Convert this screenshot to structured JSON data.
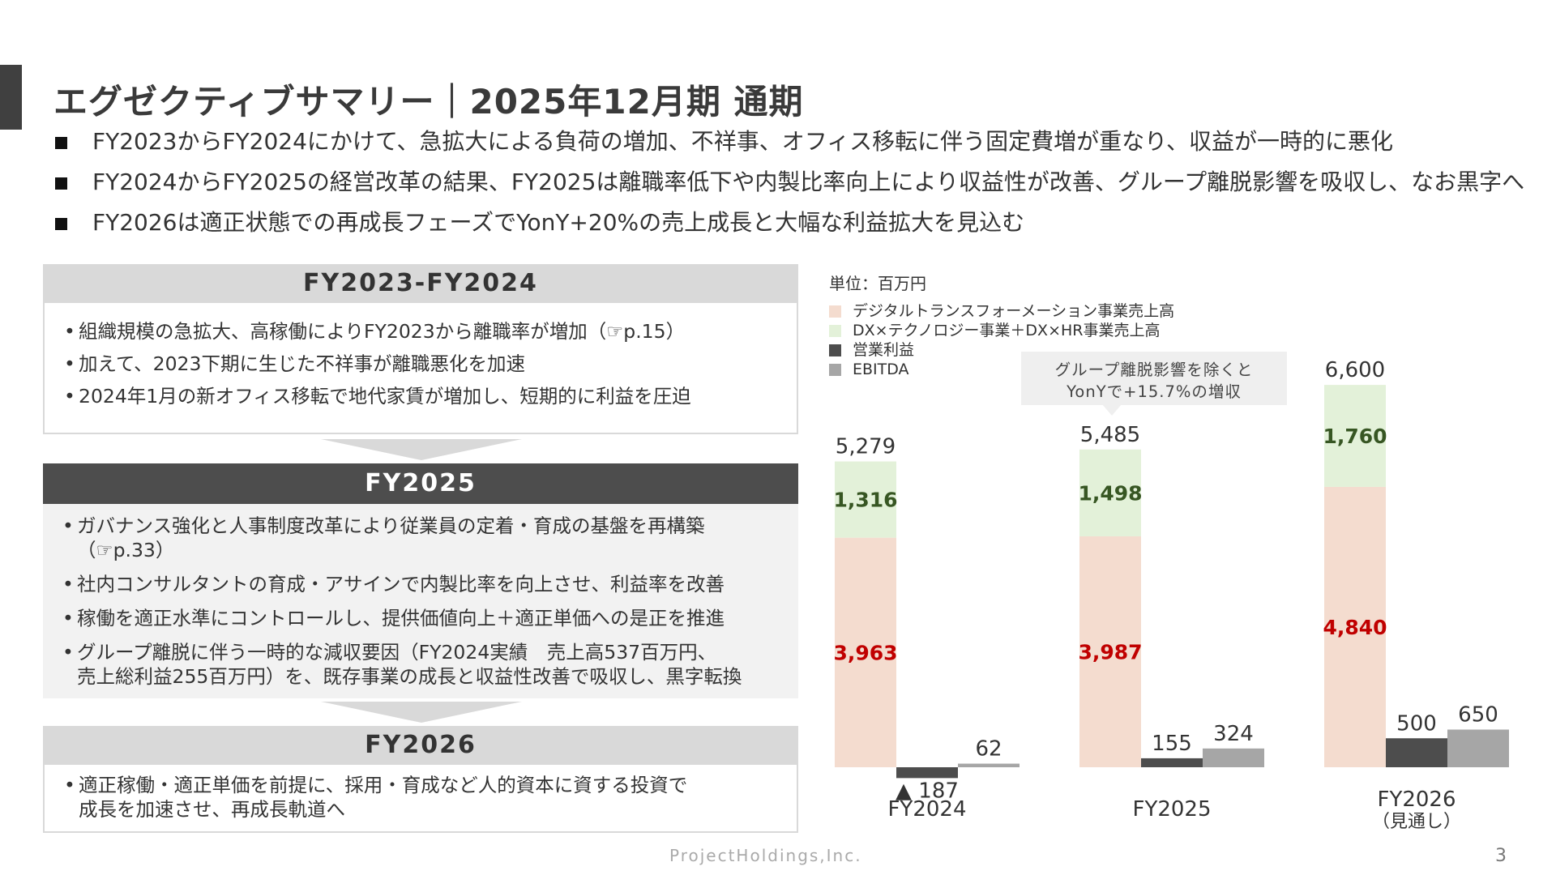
{
  "header": {
    "title": "エグゼクティブサマリー｜2025年12月期 通期",
    "bullets": [
      "FY2023からFY2024にかけて、急拡大による負荷の増加、不祥事、オフィス移転に伴う固定費増が重なり、収益が一時的に悪化",
      "FY2024からFY2025の経営改革の結果、FY2025は離職率低下や内製比率向上により収益性が改善、グループ離脱影響を吸収し、なお黒字へ",
      "FY2026は適正状態での再成長フェーズでYonY+20%の売上成長と大幅な利益拡大を見込む"
    ]
  },
  "panels": {
    "p1": {
      "title": "FY2023-FY2024",
      "items": [
        "組織規模の急拡大、高稼働によりFY2023から離職率が増加（☞p.15）",
        "加えて、2023下期に生じた不祥事が離職悪化を加速",
        "2024年1月の新オフィス移転で地代家賃が増加し、短期的に利益を圧迫"
      ]
    },
    "p2": {
      "title": "FY2025",
      "items": [
        [
          "ガバナンス強化と人事制度改革により従業員の定着・育成の基盤を再構築",
          "（☞p.33）"
        ],
        [
          "社内コンサルタントの育成・アサインで内製比率を向上させ、利益率を改善"
        ],
        [
          "稼働を適正水準にコントロールし、提供価値向上＋適正単価への是正を推進"
        ],
        [
          "グループ離脱に伴う一時的な減収要因（FY2024実績　売上高537百万円、",
          "売上総利益255百万円）を、既存事業の成長と収益性改善で吸収し、黒字転換"
        ]
      ]
    },
    "p3": {
      "title": "FY2026",
      "items": [
        [
          "適正稼働・適正単価を前提に、採用・育成など人的資本に資する投資で",
          "成長を加速させ、再成長軌道へ"
        ]
      ]
    }
  },
  "footer": {
    "company": "ProjectHoldings,Inc.",
    "page": "3"
  },
  "chart_data": {
    "type": "bar",
    "unit_label": "単位：百万円",
    "categories": [
      [
        "FY2024"
      ],
      [
        "FY2025"
      ],
      [
        "FY2026",
        "（見通し）"
      ]
    ],
    "series": [
      {
        "name": "デジタルトランスフォーメーション事業売上高",
        "values": [
          3963,
          3987,
          4840
        ],
        "color": "#f4dccf",
        "label_color": "#c00000"
      },
      {
        "name": "DX×テクノロジー事業＋DX×HR事業売上高",
        "values": [
          1316,
          1498,
          1760
        ],
        "color": "#e3f1d9",
        "label_color": "#375623"
      },
      {
        "name": "営業利益",
        "values": [
          -187,
          155,
          500
        ],
        "color": "#4d4d4d"
      },
      {
        "name": "EBITDA",
        "values": [
          62,
          324,
          650
        ],
        "color": "#a6a6a6"
      }
    ],
    "totals": [
      5279,
      5485,
      6600
    ],
    "value_labels": {
      "revenue_dt": [
        "3,963",
        "3,987",
        "4,840"
      ],
      "revenue_tech_hr": [
        "1,316",
        "1,498",
        "1,760"
      ],
      "totals": [
        "5,279",
        "5,485",
        "6,600"
      ],
      "operating_profit": [
        "▲ 187",
        "155",
        "500"
      ],
      "ebitda": [
        "62",
        "324",
        "650"
      ]
    },
    "annotation": [
      "グループ離脱影響を除くと",
      "YonYで+15.7%の増収"
    ],
    "grid": false,
    "legend_position": "top-left"
  }
}
